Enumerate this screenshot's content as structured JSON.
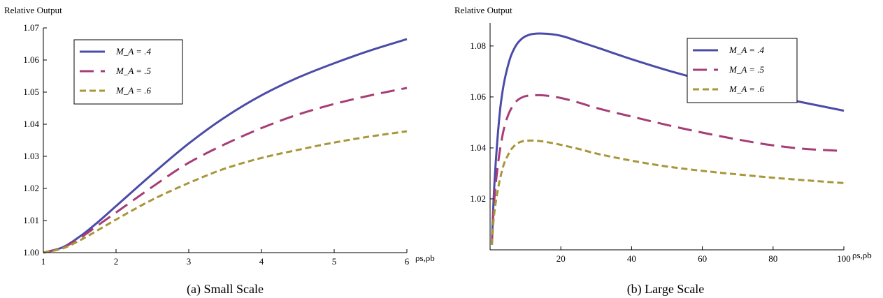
{
  "figure": {
    "captions": [
      "(a) Small Scale",
      "(b) Large Scale"
    ]
  },
  "chart_data": [
    {
      "type": "line",
      "caption": "(a) Small Scale",
      "ylabel": "Relative Output",
      "xlabel": "ρs,ρb",
      "xlim": [
        1,
        6
      ],
      "ylim": [
        1.0,
        1.07
      ],
      "xticks": [
        1,
        2,
        3,
        4,
        5,
        6
      ],
      "xtick_labels": [
        "1",
        "2",
        "3",
        "4",
        "5",
        "6"
      ],
      "yticks": [
        1.0,
        1.01,
        1.02,
        1.03,
        1.04,
        1.05,
        1.06,
        1.07
      ],
      "ytick_labels": [
        "1.00",
        "1.01",
        "1.02",
        "1.03",
        "1.04",
        "1.05",
        "1.06",
        "1.07"
      ],
      "grid": false,
      "legend_position": "top-left",
      "series": [
        {
          "name": "M_A = .4",
          "color": "#4b4ba8",
          "dash": "solid",
          "x": [
            1,
            1.25,
            1.5,
            1.75,
            2,
            2.5,
            3,
            3.5,
            4,
            4.5,
            5,
            5.5,
            6
          ],
          "y": [
            1.0,
            1.0015,
            1.005,
            1.0095,
            1.0145,
            1.0245,
            1.034,
            1.0422,
            1.049,
            1.0545,
            1.059,
            1.063,
            1.0665
          ]
        },
        {
          "name": "M_A = .5",
          "color": "#a63d76",
          "dash": "long-dash",
          "x": [
            1,
            1.25,
            1.5,
            1.75,
            2,
            2.5,
            3,
            3.5,
            4,
            4.5,
            5,
            5.5,
            6
          ],
          "y": [
            1.0,
            1.0014,
            1.0045,
            1.0085,
            1.0125,
            1.0205,
            1.028,
            1.0338,
            1.0388,
            1.043,
            1.0463,
            1.049,
            1.0513
          ]
        },
        {
          "name": "M_A = .6",
          "color": "#a8963a",
          "dash": "short-dash",
          "x": [
            1,
            1.25,
            1.5,
            1.75,
            2,
            2.5,
            3,
            3.5,
            4,
            4.5,
            5,
            5.5,
            6
          ],
          "y": [
            1.0,
            1.0012,
            1.0038,
            1.007,
            1.0103,
            1.0165,
            1.0217,
            1.0262,
            1.0295,
            1.032,
            1.0343,
            1.0362,
            1.0378
          ]
        }
      ]
    },
    {
      "type": "line",
      "caption": "(b) Large Scale",
      "ylabel": "Relative Output",
      "xlabel": "ρs,ρb",
      "xlim": [
        0,
        100
      ],
      "ylim": [
        1.0,
        1.089
      ],
      "xticks": [
        20,
        40,
        60,
        80,
        100
      ],
      "xtick_labels": [
        "20",
        "40",
        "60",
        "80",
        "100"
      ],
      "yticks": [
        1.02,
        1.04,
        1.06,
        1.08
      ],
      "ytick_labels": [
        "1.02",
        "1.04",
        "1.06",
        "1.08"
      ],
      "grid": false,
      "legend_position": "top-right",
      "series": [
        {
          "name": "M_A = .4",
          "color": "#4b4ba8",
          "dash": "solid",
          "x": [
            0.5,
            1,
            2,
            3,
            4,
            5,
            6,
            8,
            10,
            12,
            14,
            16,
            18,
            20,
            25,
            30,
            40,
            50,
            60,
            70,
            80,
            90,
            100
          ],
          "y": [
            1.002,
            1.02,
            1.042,
            1.057,
            1.066,
            1.072,
            1.0765,
            1.0815,
            1.0838,
            1.0847,
            1.0849,
            1.0848,
            1.0845,
            1.084,
            1.0818,
            1.0795,
            1.0748,
            1.0705,
            1.0667,
            1.0632,
            1.0602,
            1.0574,
            1.0546
          ]
        },
        {
          "name": "M_A = .5",
          "color": "#a63d76",
          "dash": "long-dash",
          "x": [
            0.5,
            1,
            2,
            3,
            4,
            5,
            6,
            8,
            10,
            12,
            14,
            16,
            18,
            20,
            25,
            30,
            40,
            50,
            60,
            70,
            80,
            90,
            100
          ],
          "y": [
            1.002,
            1.016,
            1.031,
            1.041,
            1.048,
            1.0525,
            1.0555,
            1.059,
            1.0603,
            1.0607,
            1.0607,
            1.0605,
            1.0601,
            1.0596,
            1.0578,
            1.0557,
            1.0523,
            1.049,
            1.046,
            1.0433,
            1.041,
            1.0395,
            1.0388
          ]
        },
        {
          "name": "M_A = .6",
          "color": "#a8963a",
          "dash": "short-dash",
          "x": [
            0.5,
            1,
            2,
            3,
            4,
            5,
            6,
            8,
            10,
            12,
            14,
            16,
            18,
            20,
            25,
            30,
            40,
            50,
            60,
            70,
            80,
            90,
            100
          ],
          "y": [
            1.002,
            1.012,
            1.022,
            1.029,
            1.034,
            1.037,
            1.0395,
            1.042,
            1.0428,
            1.0429,
            1.0427,
            1.0423,
            1.0418,
            1.0412,
            1.0396,
            1.0378,
            1.035,
            1.0327,
            1.031,
            1.0296,
            1.0283,
            1.0272,
            1.0262
          ]
        }
      ]
    }
  ]
}
